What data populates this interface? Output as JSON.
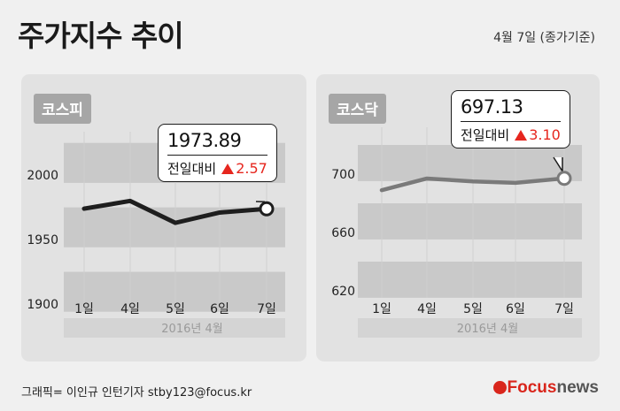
{
  "title": "주가지수 추이",
  "date": "4월 7일 (종가기준)",
  "credit": "그래픽= 이인규 인턴기자 stby123@focus.kr",
  "logo": {
    "focus": "Focus",
    "news": "news"
  },
  "colors": {
    "line": "#1e1e1e",
    "line_kosdaq": "#7a7a7a",
    "up": "#e6261e",
    "band": "#c9c9c9",
    "panel": "#e2e2e2"
  },
  "chart_data": [
    {
      "type": "line",
      "label": "코스피",
      "categories": [
        "1일",
        "4일",
        "5일",
        "6일",
        "7일"
      ],
      "values": [
        1974,
        1980,
        1963,
        1971,
        1973.89
      ],
      "yticks": [
        "2000",
        "1950",
        "1900"
      ],
      "ytick_values": [
        2000,
        1950,
        1900
      ],
      "ylim": [
        1900,
        2020
      ],
      "period": "2016년   4월",
      "callout": {
        "value": "1973.89",
        "change_label": "전일대비",
        "change": "2.57"
      }
    },
    {
      "type": "line",
      "label": "코스닥",
      "categories": [
        "1일",
        "4일",
        "5일",
        "6일",
        "7일"
      ],
      "values": [
        689,
        697,
        695,
        694,
        697.13
      ],
      "yticks": [
        "700",
        "660",
        "620"
      ],
      "ytick_values": [
        700,
        660,
        620
      ],
      "ylim": [
        620,
        720
      ],
      "period": "2016년   4월",
      "callout": {
        "value": "697.13",
        "change_label": "전일대비",
        "change": "3.10"
      }
    }
  ]
}
